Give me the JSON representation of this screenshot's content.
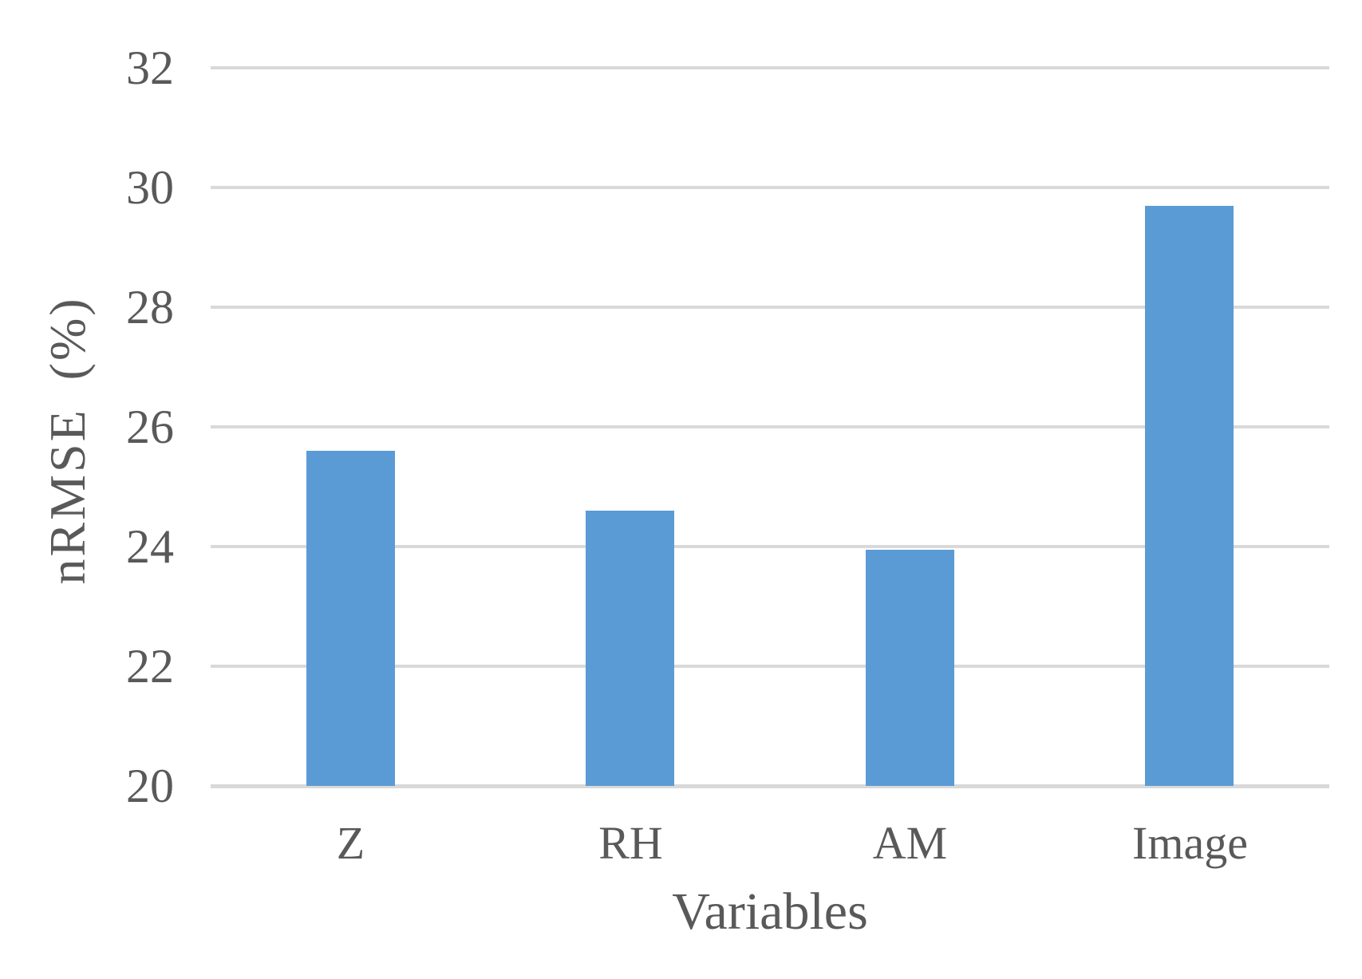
{
  "chart_data": {
    "type": "bar",
    "title": "",
    "xlabel": "Variables",
    "ylabel": "nRMSE (%)",
    "categories": [
      "Z",
      "RH",
      "AM",
      "Image"
    ],
    "values": [
      25.6,
      24.6,
      23.95,
      29.7
    ],
    "ylim": [
      20,
      32
    ],
    "ytick_step": 2,
    "ytick_labels": [
      "32",
      "30",
      "28",
      "26",
      "24",
      "22",
      "20"
    ],
    "grid": "horizontal-only",
    "legend": "none",
    "colors": {
      "bar": "#5B9BD5",
      "gridline": "#D9D9D9",
      "axis_line": "#D9D9D9",
      "text": "#595959",
      "background": "#FFFFFF"
    }
  }
}
